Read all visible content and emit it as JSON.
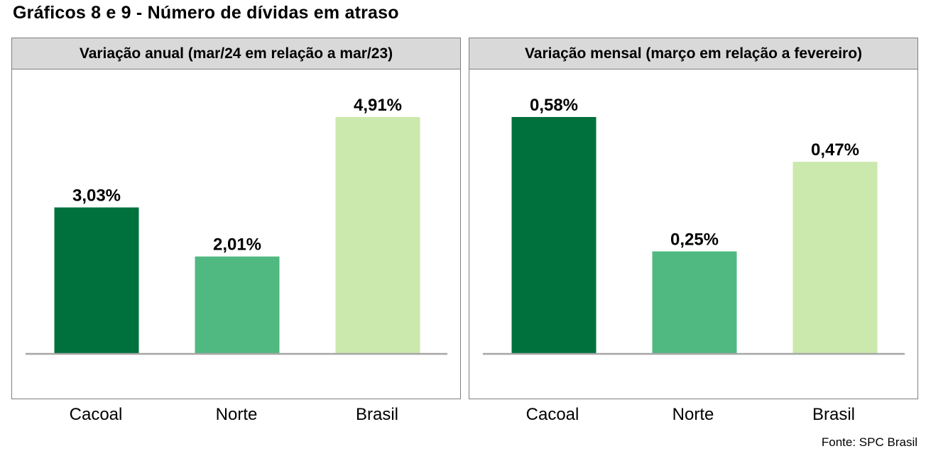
{
  "page": {
    "title": "Gráficos 8 e 9 - Número de dívidas em atraso",
    "source": "Fonte: SPC Brasil"
  },
  "chart_data": [
    {
      "type": "bar",
      "title": "Variação anual (mar/24 em relação a mar/23)",
      "categories": [
        "Cacoal",
        "Norte",
        "Brasil"
      ],
      "values": [
        3.03,
        2.01,
        4.91
      ],
      "value_labels": [
        "3,03%",
        "2,01%",
        "4,91%"
      ],
      "colors": [
        "#00703c",
        "#50b981",
        "#cbe9ad"
      ],
      "ylim": [
        0,
        5.5
      ],
      "grid": false,
      "legend": "none"
    },
    {
      "type": "bar",
      "title": "Variação mensal (março em relação a fevereiro)",
      "categories": [
        "Cacoal",
        "Norte",
        "Brasil"
      ],
      "values": [
        0.58,
        0.25,
        0.47
      ],
      "value_labels": [
        "0,58%",
        "0,25%",
        "0,47%"
      ],
      "colors": [
        "#00703c",
        "#50b981",
        "#cbe9ad"
      ],
      "ylim": [
        0,
        0.65
      ],
      "grid": false,
      "legend": "none"
    }
  ]
}
